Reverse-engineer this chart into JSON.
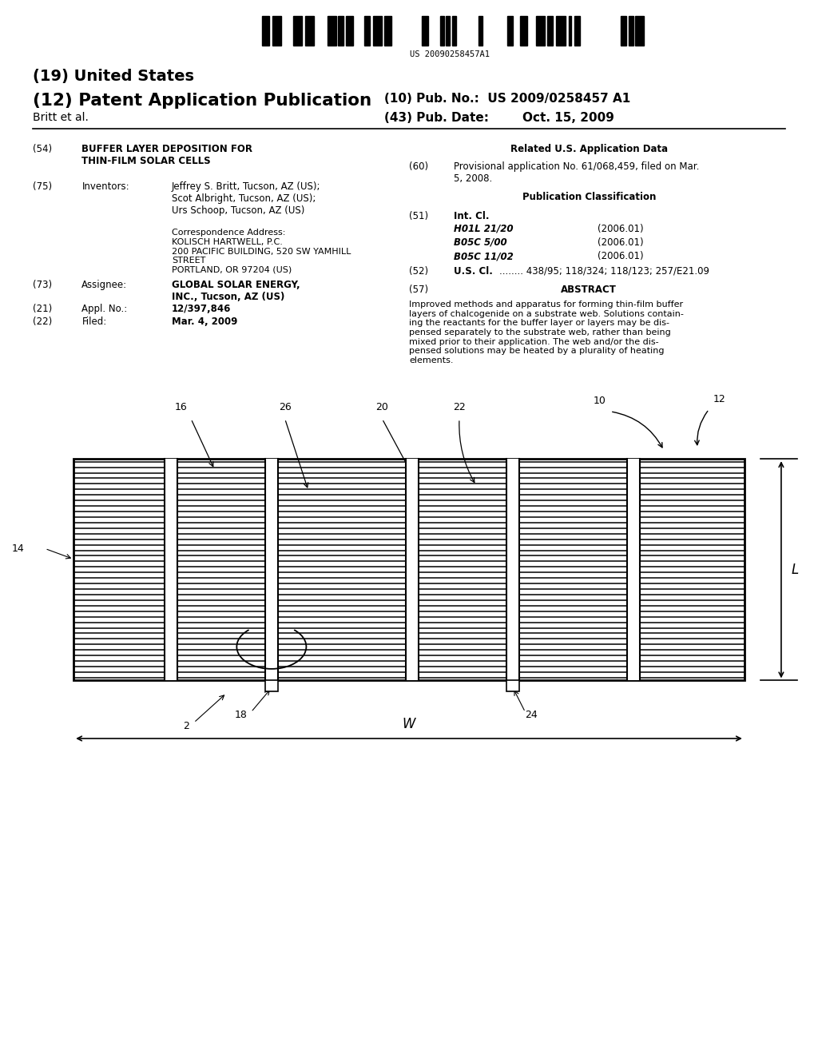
{
  "bg_color": "#ffffff",
  "barcode_text": "US 20090258457A1",
  "title19": "(19) United States",
  "title12": "(12) Patent Application Publication",
  "pub_no_label": "(10) Pub. No.:",
  "pub_no": "US 2009/0258457 A1",
  "pub_date_label": "(43) Pub. Date:",
  "pub_date": "Oct. 15, 2009",
  "author": "Britt et al.",
  "field54_label": "(54)",
  "field54_title": "BUFFER LAYER DEPOSITION FOR\nTHIN-FILM SOLAR CELLS",
  "field75_label": "(75)",
  "field75_name": "Inventors:",
  "field75_content": "Jeffrey S. Britt, Tucson, AZ (US);\nScot Albright, Tucson, AZ (US);\nUrs Schoop, Tucson, AZ (US)",
  "corr_addr": "Correspondence Address:\nKOLISCH HARTWELL, P.C.\n200 PACIFIC BUILDING, 520 SW YAMHILL\nSTREET\nPORTLAND, OR 97204 (US)",
  "field73_label": "(73)",
  "field73_name": "Assignee:",
  "field73_content": "GLOBAL SOLAR ENERGY,\nINC., Tucson, AZ (US)",
  "field21_label": "(21)",
  "field21_name": "Appl. No.:",
  "field21_content": "12/397,846",
  "field22_label": "(22)",
  "field22_name": "Filed:",
  "field22_content": "Mar. 4, 2009",
  "related_data_title": "Related U.S. Application Data",
  "field60_label": "(60)",
  "field60_content": "Provisional application No. 61/068,459, filed on Mar.\n5, 2008.",
  "pub_class_title": "Publication Classification",
  "field51_label": "(51)",
  "field51_name": "Int. Cl.",
  "field51_content": [
    [
      "H01L 21/20",
      "(2006.01)"
    ],
    [
      "B05C 5/00",
      "(2006.01)"
    ],
    [
      "B05C 11/02",
      "(2006.01)"
    ]
  ],
  "field52_label": "(52)",
  "field52_name": "U.S. Cl.",
  "field52_content": "........ 438/95; 118/324; 118/123; 257/E21.09",
  "field57_label": "(57)",
  "field57_name": "ABSTRACT",
  "abstract_text": "Improved methods and apparatus for forming thin-film buffer\nlayers of chalcogenide on a substrate web. Solutions contain-\ning the reactants for the buffer layer or layers may be dis-\npensed separately to the substrate web, rather than being\nmixed prior to their application. The web and/or the dis-\npensed solutions may be heated by a plurality of heating\nelements."
}
